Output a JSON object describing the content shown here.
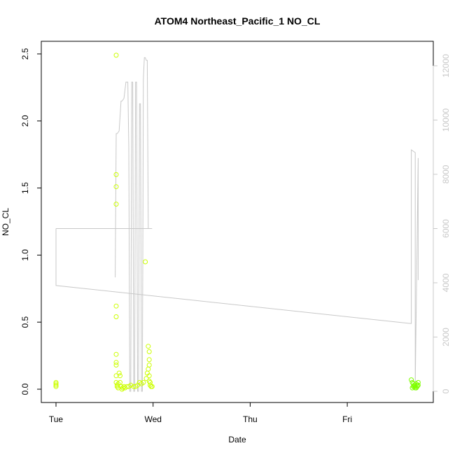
{
  "chart_data": {
    "type": "scatter",
    "title": "ATOM4 Northeast_Pacific_1 NO_CL",
    "xlabel": "Date",
    "ylabel": "NO_CL",
    "x_ticks": [
      "Tue",
      "Wed",
      "Thu",
      "Fri"
    ],
    "x_tick_values": [
      0,
      1,
      2,
      3
    ],
    "x_range_days": [
      -0.2,
      3.9
    ],
    "ylim": [
      -0.1,
      2.6
    ],
    "y_ticks": [
      "0.0",
      "0.5",
      "1.0",
      "1.5",
      "2.0",
      "2.5"
    ],
    "y_tick_values": [
      0.0,
      0.5,
      1.0,
      1.5,
      2.0,
      2.5
    ],
    "y2_ticks": [
      "0",
      "2000",
      "4000",
      "6000",
      "8000",
      "10000",
      "12000"
    ],
    "y2_tick_values": [
      0,
      2000,
      4000,
      6000,
      8000,
      10000,
      12000
    ],
    "y2_color": "#c8c8c8",
    "grid": false,
    "scatter_series": [
      {
        "color": "#ccff00",
        "x": [
          0.0,
          0.0,
          0.0,
          0.0,
          0.62,
          0.62,
          0.62,
          0.62,
          0.62,
          0.62,
          0.62,
          0.62,
          0.62,
          0.62,
          0.62,
          0.63,
          0.63,
          0.64,
          0.64,
          0.65,
          0.66,
          0.66,
          0.67,
          0.68,
          0.69,
          0.7,
          0.71,
          0.73,
          0.75,
          0.77,
          0.8,
          0.82,
          0.84,
          0.86,
          0.88,
          0.9,
          0.92,
          0.93,
          0.94,
          0.95,
          0.95,
          0.96,
          0.96,
          0.96,
          0.96,
          0.96,
          0.97,
          0.97,
          0.98,
          0.99
        ],
        "y": [
          0.05,
          0.04,
          0.03,
          0.02,
          2.49,
          1.6,
          1.51,
          1.38,
          0.62,
          0.54,
          0.26,
          0.2,
          0.18,
          0.1,
          0.05,
          0.03,
          0.02,
          0.04,
          0.01,
          0.12,
          0.1,
          0.05,
          0.02,
          0.0,
          0.01,
          0.02,
          0.01,
          0.02,
          0.02,
          0.03,
          0.02,
          0.02,
          0.03,
          0.05,
          0.04,
          0.05,
          0.95,
          0.08,
          0.12,
          0.15,
          0.32,
          0.28,
          0.22,
          0.18,
          0.1,
          0.06,
          0.05,
          0.03,
          0.02,
          0.02
        ]
      },
      {
        "color": "#7fff00",
        "x": [
          3.66,
          3.67,
          3.68,
          3.69,
          3.7,
          3.71,
          3.72,
          3.73,
          3.67,
          3.69,
          3.71,
          3.73,
          3.68,
          3.7,
          3.72
        ],
        "y": [
          0.07,
          0.05,
          0.04,
          0.03,
          0.02,
          0.04,
          0.03,
          0.05,
          0.01,
          0.02,
          0.01,
          0.03,
          0.02,
          0.01,
          0.02
        ]
      }
    ],
    "line_series": {
      "color": "#c8c8c8",
      "axis": "right",
      "x": [
        0.0,
        0.0,
        0.0,
        3.65,
        3.66,
        3.66,
        3.7,
        3.7,
        3.73,
        3.73
      ],
      "y": [
        6000,
        6000,
        3900,
        2500,
        2500,
        8900,
        8800,
        200,
        8600,
        4100
      ]
    },
    "line_series_wed": {
      "color": "#c8c8c8",
      "axis": "right",
      "x": [
        0.61,
        0.62,
        0.63,
        0.65,
        0.67,
        0.68,
        0.7,
        0.72,
        0.74,
        0.75,
        0.76,
        0.77,
        0.78,
        0.79,
        0.8,
        0.81,
        0.82,
        0.83,
        0.84,
        0.85,
        0.86,
        0.87,
        0.88,
        0.89,
        0.9,
        0.91,
        0.92,
        0.93,
        0.94,
        0.95,
        0.96,
        0.97,
        0.98,
        0.99,
        0.99,
        0.0
      ],
      "y": [
        4200,
        9500,
        9500,
        9600,
        10700,
        10700,
        10800,
        11400,
        11400,
        9000,
        0,
        0,
        11400,
        11400,
        0,
        0,
        11400,
        11400,
        0,
        0,
        10600,
        10600,
        0,
        0,
        11500,
        12300,
        12300,
        12200,
        12200,
        6000,
        6000,
        6000,
        6000,
        6000,
        6000,
        6000
      ]
    }
  }
}
